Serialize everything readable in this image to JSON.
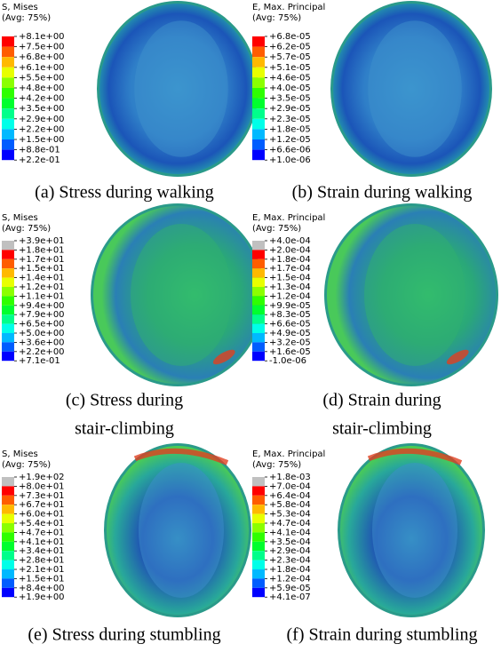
{
  "panels": [
    {
      "legend_title": [
        "S, Mises",
        "(Avg: 75%)"
      ],
      "legend_values": [
        "+8.1e+00",
        "+7.5e+00",
        "+6.8e+00",
        "+6.1e+00",
        "+5.5e+00",
        "+4.8e+00",
        "+4.2e+00",
        "+3.5e+00",
        "+2.9e+00",
        "+2.2e+00",
        "+1.5e+00",
        "+8.8e-01",
        "+2.2e-01"
      ],
      "caption": [
        "(a) Stress during walking"
      ]
    },
    {
      "legend_title": [
        "E, Max. Principal",
        "(Avg: 75%)"
      ],
      "legend_values": [
        "+6.8e-05",
        "+6.2e-05",
        "+5.7e-05",
        "+5.1e-05",
        "+4.6e-05",
        "+4.0e-05",
        "+3.5e-05",
        "+2.9e-05",
        "+2.3e-05",
        "+1.8e-05",
        "+1.2e-05",
        "+6.6e-06",
        "+1.0e-06"
      ],
      "caption": [
        "(b) Strain during walking"
      ]
    },
    {
      "legend_title": [
        "S, Mises",
        "(Avg: 75%)"
      ],
      "legend_values": [
        "+3.9e+01",
        "+1.8e+01",
        "+1.7e+01",
        "+1.5e+01",
        "+1.4e+01",
        "+1.2e+01",
        "+1.1e+01",
        "+9.4e+00",
        "+7.9e+00",
        "+6.5e+00",
        "+5.0e+00",
        "+3.6e+00",
        "+2.2e+00",
        "+7.1e-01"
      ],
      "caption": [
        "(c) Stress during",
        "stair-climbing"
      ]
    },
    {
      "legend_title": [
        "E, Max. Principal",
        "(Avg: 75%)"
      ],
      "legend_values": [
        "+4.0e-04",
        "+2.0e-04",
        "+1.8e-04",
        "+1.7e-04",
        "+1.5e-04",
        "+1.3e-04",
        "+1.2e-04",
        "+9.9e-05",
        "+8.3e-05",
        "+6.6e-05",
        "+4.9e-05",
        "+3.2e-05",
        "+1.6e-05",
        "-1.0e-06"
      ],
      "caption": [
        "(d) Strain during",
        "stair-climbing"
      ]
    },
    {
      "legend_title": [
        "S, Mises",
        "(Avg: 75%)"
      ],
      "legend_values": [
        "+1.9e+02",
        "+8.0e+01",
        "+7.3e+01",
        "+6.7e+01",
        "+6.0e+01",
        "+5.4e+01",
        "+4.7e+01",
        "+4.1e+01",
        "+3.4e+01",
        "+2.8e+01",
        "+2.1e+01",
        "+1.5e+01",
        "+8.4e+00",
        "+1.9e+00"
      ],
      "caption": [
        "(e) Stress during stumbling"
      ]
    },
    {
      "legend_title": [
        "E, Max. Principal",
        "(Avg: 75%)"
      ],
      "legend_values": [
        "+1.8e-03",
        "+7.0e-04",
        "+6.4e-04",
        "+5.8e-04",
        "+5.3e-04",
        "+4.7e-04",
        "+4.1e-04",
        "+3.5e-04",
        "+2.9e-04",
        "+2.3e-04",
        "+1.8e-04",
        "+1.2e-04",
        "+5.9e-05",
        "+4.1e-07"
      ],
      "caption": [
        "(f) Strain during stumbling"
      ]
    }
  ]
}
